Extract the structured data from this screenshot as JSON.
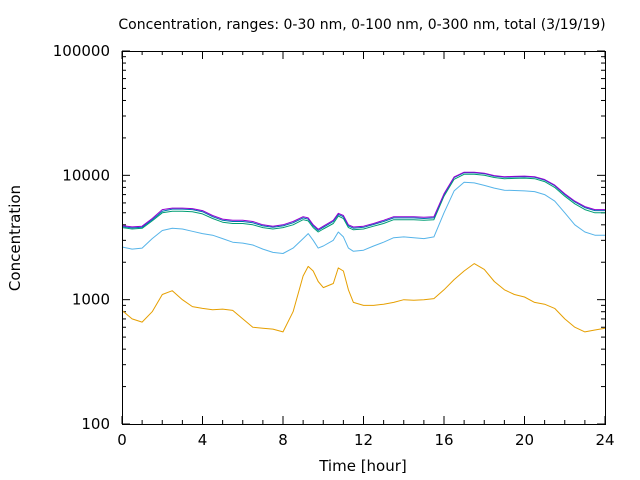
{
  "chart_data": {
    "type": "line",
    "title": "Concentration, ranges: 0-30 nm, 0-100 nm, 0-300 nm, total (3/19/19)",
    "xlabel": "Time [hour]",
    "ylabel": "Concentration",
    "xlim": [
      0,
      24
    ],
    "ylim": [
      100,
      100000
    ],
    "yscale": "log",
    "grid": false,
    "legend": "none",
    "x_ticks": [
      0,
      4,
      8,
      12,
      16,
      20,
      24
    ],
    "x_tick_labels": [
      "0",
      "4",
      "8",
      "12",
      "16",
      "20",
      "24"
    ],
    "y_ticks": [
      100,
      1000,
      10000,
      100000
    ],
    "y_tick_labels": [
      "100",
      "1000",
      "10000",
      "100000"
    ],
    "x": [
      0,
      0.5,
      1,
      1.5,
      2,
      2.5,
      3,
      3.5,
      4,
      4.5,
      5,
      5.5,
      6,
      6.5,
      7,
      7.5,
      8,
      8.5,
      9,
      9.25,
      9.5,
      9.75,
      10,
      10.5,
      10.75,
      11,
      11.25,
      11.5,
      12,
      12.5,
      13,
      13.5,
      14,
      14.5,
      15,
      15.5,
      16,
      16.5,
      17,
      17.5,
      18,
      18.5,
      19,
      19.5,
      20,
      20.5,
      21,
      21.5,
      22,
      22.5,
      23,
      23.5,
      24
    ],
    "series": [
      {
        "color": "#e69f00",
        "values": [
          820,
          700,
          660,
          800,
          1100,
          1180,
          1000,
          880,
          850,
          830,
          840,
          820,
          700,
          600,
          590,
          580,
          550,
          800,
          1550,
          1850,
          1700,
          1400,
          1250,
          1350,
          1800,
          1700,
          1200,
          950,
          900,
          900,
          920,
          950,
          1000,
          990,
          1000,
          1020,
          1200,
          1450,
          1700,
          1950,
          1750,
          1400,
          1200,
          1100,
          1050,
          950,
          920,
          850,
          700,
          600,
          550,
          570,
          590
        ]
      },
      {
        "color": "#56b4e9",
        "values": [
          2650,
          2550,
          2600,
          3100,
          3600,
          3750,
          3700,
          3550,
          3400,
          3300,
          3100,
          2900,
          2850,
          2750,
          2550,
          2400,
          2350,
          2600,
          3100,
          3400,
          3000,
          2600,
          2700,
          3000,
          3500,
          3200,
          2600,
          2450,
          2500,
          2700,
          2900,
          3150,
          3200,
          3150,
          3100,
          3200,
          5000,
          7500,
          8800,
          8700,
          8300,
          7900,
          7600,
          7550,
          7500,
          7400,
          7000,
          6200,
          5000,
          4000,
          3500,
          3300,
          3300
        ]
      },
      {
        "color": "#009e73",
        "values": [
          3800,
          3700,
          3750,
          4300,
          5000,
          5150,
          5150,
          5100,
          4900,
          4500,
          4200,
          4100,
          4100,
          4000,
          3800,
          3700,
          3800,
          4000,
          4400,
          4300,
          3800,
          3500,
          3700,
          4100,
          4700,
          4500,
          3800,
          3650,
          3700,
          3900,
          4100,
          4400,
          4400,
          4400,
          4350,
          4400,
          6800,
          9300,
          10200,
          10200,
          10000,
          9600,
          9400,
          9450,
          9500,
          9400,
          8900,
          8000,
          6800,
          5900,
          5300,
          5000,
          5000
        ]
      },
      {
        "color": "#0072b2",
        "values": [
          3880,
          3780,
          3830,
          4400,
          5150,
          5350,
          5350,
          5300,
          5100,
          4650,
          4350,
          4250,
          4250,
          4150,
          3920,
          3820,
          3920,
          4150,
          4550,
          4450,
          3920,
          3600,
          3820,
          4250,
          4850,
          4650,
          3920,
          3760,
          3820,
          4020,
          4250,
          4550,
          4550,
          4550,
          4500,
          4550,
          7000,
          9600,
          10500,
          10500,
          10300,
          9850,
          9650,
          9700,
          9750,
          9650,
          9150,
          8250,
          7000,
          6100,
          5500,
          5200,
          5200
        ]
      },
      {
        "color": "#9400d3",
        "values": [
          3950,
          3850,
          3900,
          4500,
          5300,
          5450,
          5450,
          5400,
          5200,
          4750,
          4450,
          4350,
          4350,
          4250,
          4000,
          3900,
          4000,
          4250,
          4650,
          4550,
          4000,
          3680,
          3900,
          4350,
          4950,
          4750,
          4000,
          3840,
          3900,
          4100,
          4350,
          4650,
          4650,
          4650,
          4600,
          4650,
          7100,
          9700,
          10600,
          10600,
          10400,
          9950,
          9750,
          9800,
          9850,
          9750,
          9250,
          8350,
          7100,
          6200,
          5600,
          5300,
          5300
        ]
      }
    ]
  }
}
